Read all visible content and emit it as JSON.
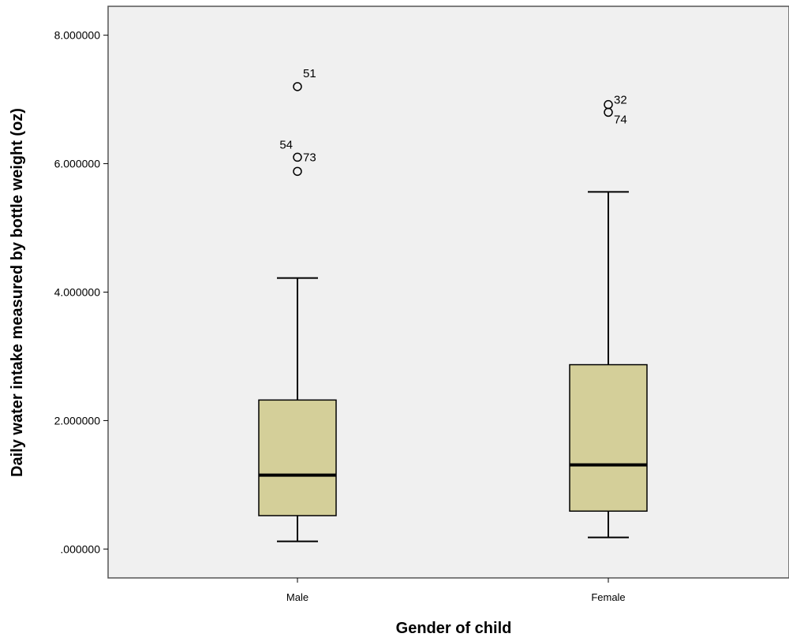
{
  "chart_data": {
    "type": "box",
    "xlabel": "Gender of child",
    "ylabel": "Daily water intake measured by bottle weight (oz)",
    "ylim": [
      -0.45,
      8.45
    ],
    "yticks": [
      0,
      2,
      4,
      6,
      8
    ],
    "ytick_labels": [
      ".000000",
      "2.000000",
      "4.000000",
      "6.000000",
      "8.000000"
    ],
    "categories": [
      "Male",
      "Female"
    ],
    "boxes": [
      {
        "category": "Male",
        "whisker_low": 0.12,
        "q1": 0.52,
        "median": 1.15,
        "q3": 2.32,
        "whisker_high": 4.22,
        "outliers": [
          {
            "value": 7.2,
            "label": "51"
          },
          {
            "value": 6.1,
            "label": "73"
          },
          {
            "value": 6.1,
            "label": "54"
          },
          {
            "value": 5.88,
            "label": ""
          }
        ]
      },
      {
        "category": "Female",
        "whisker_low": 0.18,
        "q1": 0.59,
        "median": 1.31,
        "q3": 2.87,
        "whisker_high": 5.56,
        "outliers": [
          {
            "value": 6.92,
            "label": "32"
          },
          {
            "value": 6.8,
            "label": "74"
          }
        ]
      }
    ],
    "colors": {
      "plot_background": "#f0f0f0",
      "box_fill": "#d4cf99",
      "line": "#000000",
      "frame": "#555555"
    },
    "grid": false,
    "legend": "none"
  }
}
